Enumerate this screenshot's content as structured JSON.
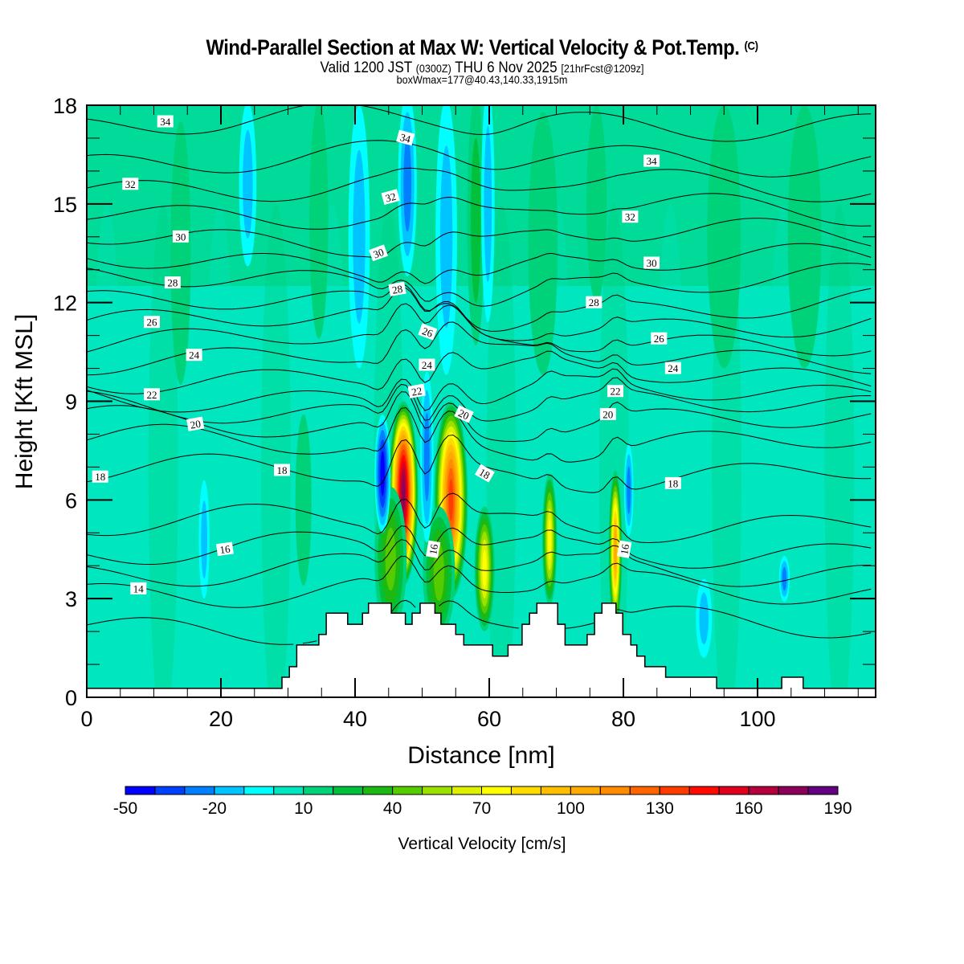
{
  "title": {
    "main": "Wind-Parallel Section at Max W: Vertical Velocity & Pot.Temp.",
    "copyright": "(C)",
    "valid_prefix": "Valid 1200 JST",
    "valid_utc": "(0300Z)",
    "valid_date": "THU 6 Nov 2025",
    "forecast": "[21hrFcst@1209z]",
    "box_info": "boxWmax=177@40.43,140.33,1915m"
  },
  "chart_data": {
    "type": "heatmap",
    "xlabel": "Distance [nm]",
    "ylabel": "Height [Kft MSL]",
    "xlim": [
      0,
      117.6
    ],
    "ylim": [
      0,
      18
    ],
    "x_ticks": [
      0,
      20,
      40,
      60,
      80,
      100
    ],
    "x_tick_labels": [
      "0",
      "20",
      "40",
      "60",
      "80",
      "100"
    ],
    "x_minor_step": 5,
    "y_ticks": [
      0,
      3,
      6,
      9,
      12,
      15,
      18
    ],
    "y_tick_labels": [
      "0",
      "3",
      "6",
      "9",
      "12",
      "15",
      "18"
    ],
    "y_minor_step": 1,
    "colorbar": {
      "title": "Vertical Velocity [cm/s]",
      "min": -50,
      "max": 190,
      "step": 10,
      "tick_values": [
        -50,
        -20,
        10,
        40,
        70,
        100,
        130,
        160,
        190
      ],
      "tick_labels": [
        "-50",
        "-20",
        "10",
        "40",
        "70",
        "100",
        "130",
        "160",
        "190"
      ],
      "colors": [
        "#0000ff",
        "#0040ff",
        "#0080ff",
        "#00c4ff",
        "#00ffff",
        "#00e6bf",
        "#00d27a",
        "#00c03c",
        "#1cb814",
        "#55cc00",
        "#9ce000",
        "#dcf000",
        "#ffff00",
        "#ffdc00",
        "#ffbe00",
        "#ffaa00",
        "#ff8c00",
        "#ff6400",
        "#ff3c00",
        "#ff0a00",
        "#e0001e",
        "#b4003c",
        "#8c005a",
        "#640082"
      ]
    },
    "field_background_value": 5,
    "field_upper_value": 12,
    "vertical_velocity_features": [
      {
        "x": 47.2,
        "h": 6.2,
        "half_width": 2.2,
        "half_height": 2.8,
        "peak": 170
      },
      {
        "x": 54.3,
        "h": 6.0,
        "half_width": 2.5,
        "half_height": 3.0,
        "peak": 135
      },
      {
        "x": 59.3,
        "h": 3.9,
        "half_width": 1.5,
        "half_height": 1.9,
        "peak": 70
      },
      {
        "x": 69.0,
        "h": 4.8,
        "half_width": 1.1,
        "half_height": 2.0,
        "peak": 75
      },
      {
        "x": 78.8,
        "h": 4.5,
        "half_width": 1.0,
        "half_height": 2.4,
        "peak": 100
      },
      {
        "x": 45.3,
        "h": 4.2,
        "half_width": 2.4,
        "half_height": 2.2,
        "peak": 45
      },
      {
        "x": 52.5,
        "h": 3.8,
        "half_width": 2.4,
        "half_height": 2.0,
        "peak": 45
      },
      {
        "x": 44.1,
        "h": 6.8,
        "half_width": 1.2,
        "half_height": 1.8,
        "peak": -45
      },
      {
        "x": 50.7,
        "h": 7.3,
        "half_width": 1.0,
        "half_height": 2.6,
        "peak": -25
      },
      {
        "x": 80.8,
        "h": 6.3,
        "half_width": 0.7,
        "half_height": 1.4,
        "peak": -25
      },
      {
        "x": 58.0,
        "h": 14.5,
        "half_width": 1.3,
        "half_height": 3.8,
        "peak": 25
      },
      {
        "x": 53.6,
        "h": 14.0,
        "half_width": 1.6,
        "half_height": 4.2,
        "peak": -15
      },
      {
        "x": 47.8,
        "h": 15.6,
        "half_width": 1.4,
        "half_height": 2.8,
        "peak": -20
      },
      {
        "x": 59.8,
        "h": 15.0,
        "half_width": 1.0,
        "half_height": 3.6,
        "peak": -15
      },
      {
        "x": 40.6,
        "h": 14.0,
        "half_width": 1.6,
        "half_height": 4.0,
        "peak": -15
      },
      {
        "x": 34.6,
        "h": 14.5,
        "half_width": 1.4,
        "half_height": 3.6,
        "peak": 15
      },
      {
        "x": 24.0,
        "h": 15.6,
        "half_width": 1.3,
        "half_height": 2.5,
        "peak": -15
      },
      {
        "x": 14.0,
        "h": 13.5,
        "half_width": 1.5,
        "half_height": 4.0,
        "peak": 12
      },
      {
        "x": 68.0,
        "h": 13.8,
        "half_width": 2.2,
        "half_height": 4.0,
        "peak": 12
      },
      {
        "x": 76.0,
        "h": 15.0,
        "half_width": 1.5,
        "half_height": 3.0,
        "peak": 12
      },
      {
        "x": 95.0,
        "h": 14.0,
        "half_width": 2.5,
        "half_height": 4.0,
        "peak": 12
      },
      {
        "x": 107.0,
        "h": 14.0,
        "half_width": 2.5,
        "half_height": 4.0,
        "peak": 12
      },
      {
        "x": 17.5,
        "h": 4.8,
        "half_width": 0.8,
        "half_height": 1.8,
        "peak": -15
      },
      {
        "x": 32.3,
        "h": 6.0,
        "half_width": 1.2,
        "half_height": 2.6,
        "peak": 15
      },
      {
        "x": 92.0,
        "h": 2.4,
        "half_width": 1.2,
        "half_height": 1.2,
        "peak": -15
      },
      {
        "x": 104.0,
        "h": 3.6,
        "half_width": 0.8,
        "half_height": 0.7,
        "peak": -20
      }
    ],
    "terrain": {
      "x": [
        0,
        29.1,
        29.1,
        30.2,
        30.2,
        31.3,
        31.3,
        34.6,
        34.6,
        35.7,
        35.7,
        38.9,
        38.9,
        41.1,
        41.1,
        42.0,
        42.0,
        45.4,
        45.4,
        47.5,
        47.5,
        48.5,
        48.5,
        49.7,
        49.7,
        51.9,
        51.9,
        52.8,
        52.8,
        55.0,
        55.0,
        56.2,
        56.2,
        60.5,
        60.5,
        62.8,
        62.8,
        64.9,
        64.9,
        66.0,
        66.0,
        67.1,
        67.1,
        70.2,
        70.2,
        71.3,
        71.3,
        74.6,
        74.6,
        75.7,
        75.7,
        76.8,
        76.8,
        78.9,
        78.9,
        79.9,
        79.9,
        81.1,
        81.1,
        82.0,
        82.0,
        83.2,
        83.2,
        86.3,
        86.3,
        93.9,
        93.9,
        103.6,
        103.6,
        106.8,
        106.8,
        117.6
      ],
      "h": [
        0.27,
        0.27,
        0.61,
        0.61,
        0.93,
        0.93,
        1.59,
        1.59,
        1.91,
        1.91,
        2.56,
        2.56,
        2.22,
        2.22,
        2.56,
        2.56,
        2.86,
        2.86,
        2.56,
        2.56,
        2.22,
        2.22,
        2.56,
        2.56,
        2.86,
        2.86,
        2.56,
        2.56,
        2.22,
        2.22,
        1.91,
        1.91,
        1.59,
        1.59,
        1.25,
        1.25,
        1.59,
        1.59,
        2.22,
        2.22,
        2.56,
        2.56,
        2.86,
        2.86,
        2.22,
        2.22,
        1.59,
        1.59,
        1.91,
        1.91,
        2.56,
        2.56,
        2.86,
        2.86,
        2.56,
        2.56,
        1.91,
        1.91,
        1.59,
        1.59,
        1.25,
        1.25,
        0.93,
        0.93,
        0.61,
        0.61,
        0.27,
        0.27,
        0.61,
        0.61,
        0.27,
        0.27
      ]
    },
    "theta_contours": {
      "unit": "C",
      "levels": [
        13,
        14,
        15,
        16,
        17,
        18,
        19,
        20,
        21,
        22,
        23,
        24,
        25,
        26,
        27,
        28,
        29,
        30,
        31,
        32,
        33,
        34,
        35
      ],
      "level_heights_kft": [
        2.2,
        3.3,
        3.9,
        4.5,
        5.3,
        6.8,
        7.7,
        8.3,
        8.8,
        9.2,
        9.8,
        10.4,
        10.9,
        11.4,
        11.9,
        12.6,
        13.2,
        14.0,
        14.8,
        15.6,
        16.4,
        17.5,
        18.6
      ],
      "labels": [
        {
          "text": "34",
          "x": 11.7,
          "h": 17.5,
          "angle": 0
        },
        {
          "text": "34",
          "x": 47.5,
          "h": 17.0,
          "angle": 15
        },
        {
          "text": "34",
          "x": 84.2,
          "h": 16.3,
          "angle": 0
        },
        {
          "text": "32",
          "x": 6.5,
          "h": 15.6,
          "angle": 0
        },
        {
          "text": "32",
          "x": 45.3,
          "h": 15.2,
          "angle": -15
        },
        {
          "text": "32",
          "x": 81.0,
          "h": 14.6,
          "angle": 0
        },
        {
          "text": "30",
          "x": 14.0,
          "h": 14.0,
          "angle": 0
        },
        {
          "text": "30",
          "x": 43.5,
          "h": 13.5,
          "angle": -20
        },
        {
          "text": "30",
          "x": 84.2,
          "h": 13.2,
          "angle": 0
        },
        {
          "text": "28",
          "x": 12.8,
          "h": 12.6,
          "angle": 0
        },
        {
          "text": "28",
          "x": 46.3,
          "h": 12.4,
          "angle": -10
        },
        {
          "text": "28",
          "x": 75.6,
          "h": 12.0,
          "angle": 0
        },
        {
          "text": "26",
          "x": 9.7,
          "h": 11.4,
          "angle": 0
        },
        {
          "text": "26",
          "x": 50.8,
          "h": 11.1,
          "angle": 20
        },
        {
          "text": "26",
          "x": 85.3,
          "h": 10.9,
          "angle": 0
        },
        {
          "text": "24",
          "x": 16.0,
          "h": 10.4,
          "angle": 0
        },
        {
          "text": "24",
          "x": 50.7,
          "h": 10.1,
          "angle": 0
        },
        {
          "text": "24",
          "x": 87.4,
          "h": 10.0,
          "angle": 0
        },
        {
          "text": "22",
          "x": 9.7,
          "h": 9.2,
          "angle": 0
        },
        {
          "text": "22",
          "x": 49.2,
          "h": 9.3,
          "angle": -10
        },
        {
          "text": "22",
          "x": 78.8,
          "h": 9.3,
          "angle": 0
        },
        {
          "text": "20",
          "x": 16.2,
          "h": 8.3,
          "angle": -10
        },
        {
          "text": "20",
          "x": 56.2,
          "h": 8.6,
          "angle": 25
        },
        {
          "text": "20",
          "x": 77.7,
          "h": 8.6,
          "angle": 0
        },
        {
          "text": "18",
          "x": 2.0,
          "h": 6.7,
          "angle": 0
        },
        {
          "text": "18",
          "x": 29.1,
          "h": 6.9,
          "angle": 0
        },
        {
          "text": "18",
          "x": 59.3,
          "h": 6.8,
          "angle": 30
        },
        {
          "text": "18",
          "x": 87.4,
          "h": 6.5,
          "angle": 0
        },
        {
          "text": "16",
          "x": 20.6,
          "h": 4.5,
          "angle": -8
        },
        {
          "text": "16",
          "x": 51.7,
          "h": 4.5,
          "angle": -80
        },
        {
          "text": "16",
          "x": 80.2,
          "h": 4.5,
          "angle": -80
        },
        {
          "text": "14",
          "x": 7.7,
          "h": 3.3,
          "angle": 0
        }
      ]
    }
  }
}
